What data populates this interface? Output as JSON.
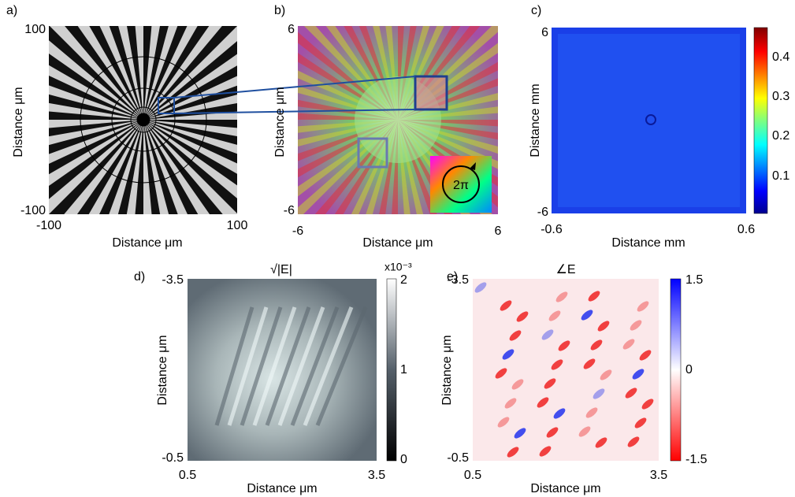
{
  "panels": [
    {
      "label": "a)",
      "x_ticks": [
        "-100",
        "100"
      ],
      "y_ticks": [
        "100",
        "-100"
      ],
      "xlabel": "Distance μm",
      "ylabel": "Distance μm"
    },
    {
      "label": "b)",
      "x_ticks": [
        "-6",
        "6"
      ],
      "y_ticks": [
        "6",
        "-6"
      ],
      "xlabel": "Distance μm",
      "ylabel": "Distance μm",
      "inset": "2π"
    },
    {
      "label": "c)",
      "x_ticks": [
        "-0.6",
        "0.6"
      ],
      "y_ticks": [
        "6",
        "-6"
      ],
      "xlabel": "Distance mm",
      "ylabel": "Distance mm",
      "colorbar_ticks": [
        "0.4",
        "0.3",
        "0.2",
        "0.1"
      ]
    },
    {
      "label": "d)",
      "title": "√|E|",
      "x_ticks": [
        "0.5",
        "3.5"
      ],
      "y_ticks": [
        "-3.5",
        "-0.5"
      ],
      "xlabel": "Distance μm",
      "ylabel": "Distance μm",
      "colorbar_ticks": [
        "2",
        "1",
        "0"
      ],
      "colorbar_scale": "x10⁻³"
    },
    {
      "label": "e)",
      "title": "∠E",
      "x_ticks": [
        "0.5",
        "3.5"
      ],
      "y_ticks": [
        "-3.5",
        "-0.5"
      ],
      "xlabel": "Distance μm",
      "ylabel": "Distance μm",
      "colorbar_ticks": [
        "1.5",
        "0",
        "-1.5"
      ]
    }
  ]
}
